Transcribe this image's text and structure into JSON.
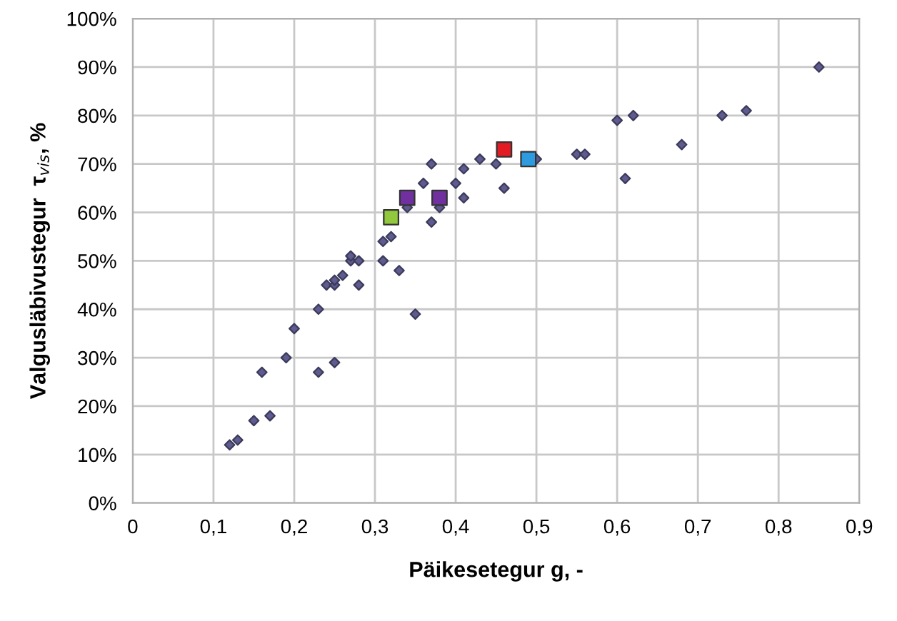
{
  "chart_data": {
    "type": "scatter",
    "xlabel": "Päikesetegur g, -",
    "ylabel": "Valgusläbivustegur  τ$_{vis}$, %",
    "xlim": [
      0,
      0.9
    ],
    "xticks": [
      0,
      {
        "value": 0.1,
        "label": "0,1"
      },
      {
        "value": 0.2,
        "label": "0,2"
      },
      {
        "value": 0.3,
        "label": "0,3"
      },
      {
        "value": 0.4,
        "label": "0,4"
      },
      {
        "value": 0.5,
        "label": "0,5"
      },
      {
        "value": 0.6,
        "label": "0,6"
      },
      {
        "value": 0.7,
        "label": "0,7"
      },
      {
        "value": 0.8,
        "label": "0,8"
      },
      {
        "value": 0.9,
        "label": "0,9"
      }
    ],
    "ylim": [
      0,
      100
    ],
    "yticks": [
      {
        "value": 0,
        "label": "0%"
      },
      {
        "value": 10,
        "label": "10%"
      },
      {
        "value": 20,
        "label": "20%"
      },
      {
        "value": 30,
        "label": "30%"
      },
      {
        "value": 40,
        "label": "40%"
      },
      {
        "value": 50,
        "label": "50%"
      },
      {
        "value": 60,
        "label": "60%"
      },
      {
        "value": 70,
        "label": "70%"
      },
      {
        "value": 80,
        "label": "80%"
      },
      {
        "value": 90,
        "label": "90%"
      },
      {
        "value": 100,
        "label": "100%"
      }
    ],
    "grid": true,
    "legend": false,
    "series": [
      {
        "color": "#5f5b8f",
        "marker": "diamond",
        "x": [
          0.12,
          0.13,
          0.15,
          0.16,
          0.17,
          0.19,
          0.2,
          0.23,
          0.23,
          0.24,
          0.25,
          0.25,
          0.25,
          0.26,
          0.27,
          0.27,
          0.28,
          0.28,
          0.31,
          0.31,
          0.32,
          0.33,
          0.34,
          0.35,
          0.36,
          0.37,
          0.37,
          0.38,
          0.4,
          0.41,
          0.41,
          0.43,
          0.45,
          0.46,
          0.5,
          0.55,
          0.56,
          0.6,
          0.61,
          0.62,
          0.68,
          0.73,
          0.76,
          0.85
        ],
        "values": [
          12,
          13,
          17,
          27,
          18,
          30,
          36,
          27,
          40,
          45,
          29,
          45,
          46,
          47,
          50,
          51,
          45,
          50,
          50,
          54,
          55,
          48,
          61,
          39,
          66,
          58,
          70,
          61,
          66,
          69,
          63,
          71,
          70,
          65,
          71,
          72,
          72,
          79,
          67,
          80,
          74,
          80,
          81,
          90
        ]
      },
      {
        "color": "#92c83e",
        "marker": "square",
        "x": [
          0.32
        ],
        "values": [
          59
        ]
      },
      {
        "color": "#7030a0",
        "marker": "square",
        "x": [
          0.34,
          0.38
        ],
        "values": [
          63,
          63
        ]
      },
      {
        "color": "#e31c23",
        "marker": "square",
        "x": [
          0.46
        ],
        "values": [
          73
        ]
      },
      {
        "color": "#2e9be0",
        "marker": "square",
        "x": [
          0.49
        ],
        "values": [
          71
        ]
      }
    ]
  }
}
